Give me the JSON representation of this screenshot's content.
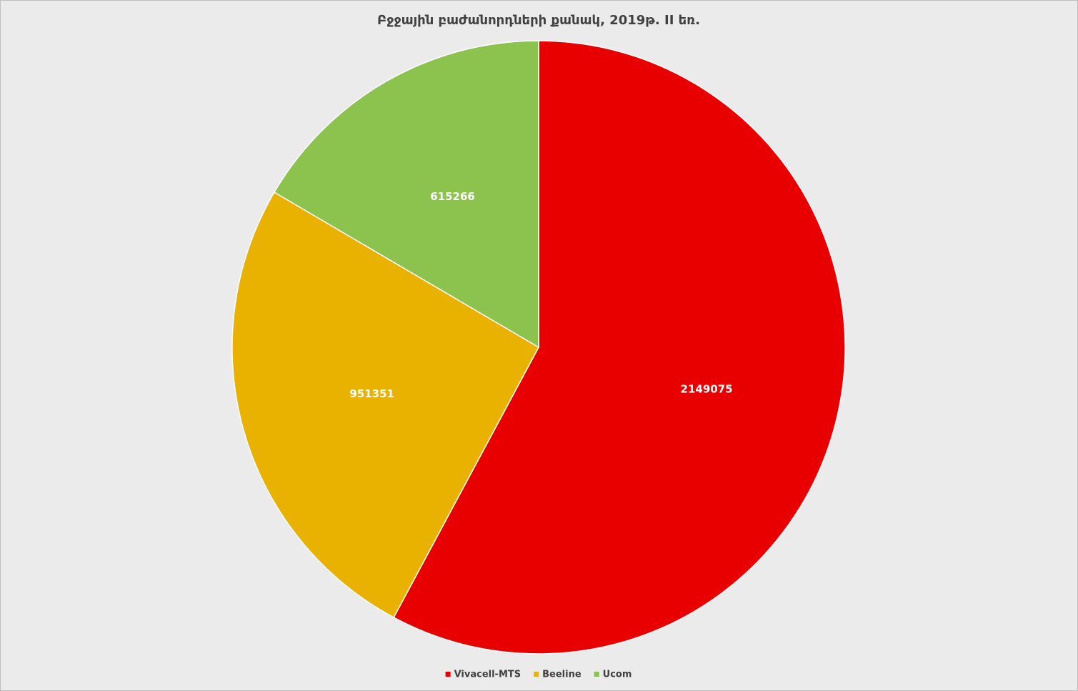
{
  "chart_data": {
    "type": "pie",
    "title": "Բջջային բաժանորդների քանակ, 2019թ. II եռ.",
    "categories": [
      "Vivacell-MTS",
      "Beeline",
      "Ucom"
    ],
    "values": [
      2149075,
      951351,
      615266
    ],
    "colors": [
      "#e80000",
      "#eab200",
      "#8bc34e"
    ],
    "legend": "bottom"
  }
}
